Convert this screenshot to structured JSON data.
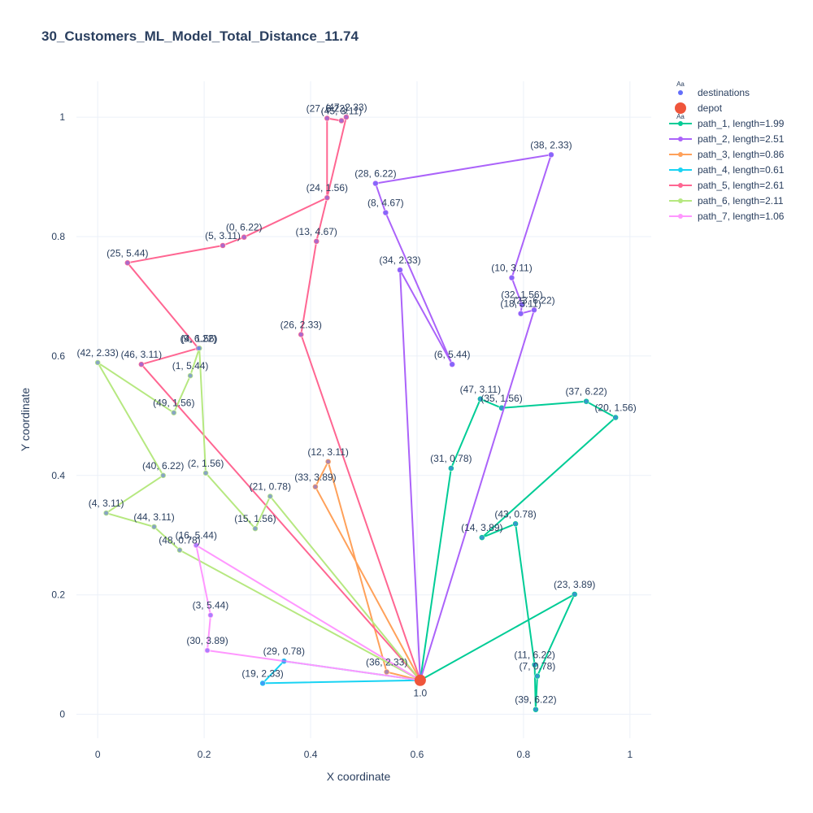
{
  "chart_data": {
    "type": "scatter",
    "title": "30_Customers_ML_Model_Total_Distance_11.74",
    "xlabel": "X coordinate",
    "ylabel": "Y coordinate",
    "xlim": [
      -0.04,
      1.04
    ],
    "ylim": [
      -0.04,
      1.06
    ],
    "x_ticks": [
      "0",
      "0.2",
      "0.4",
      "0.6",
      "0.8",
      "1"
    ],
    "y_ticks": [
      "0",
      "0.2",
      "0.4",
      "0.6",
      "0.8",
      "1"
    ],
    "grid": true,
    "legend_position": "top-right",
    "depot": {
      "name": "depot",
      "label": "1.0",
      "x": 0.606,
      "y": 0.057,
      "color": "#ef553b"
    },
    "destinations": {
      "name": "destinations",
      "color": "#636efa",
      "points": [
        {
          "label": "(31, 0.78)",
          "x": 0.664,
          "y": 0.412
        },
        {
          "label": "(47, 3.11)",
          "x": 0.719,
          "y": 0.528
        },
        {
          "label": "(35, 1.56)",
          "x": 0.759,
          "y": 0.513
        },
        {
          "label": "(37, 6.22)",
          "x": 0.918,
          "y": 0.524
        },
        {
          "label": "(20, 1.56)",
          "x": 0.973,
          "y": 0.497
        },
        {
          "label": "(14, 3.89)",
          "x": 0.722,
          "y": 0.296
        },
        {
          "label": "(43, 0.78)",
          "x": 0.785,
          "y": 0.319
        },
        {
          "label": "(11, 6.22)",
          "x": 0.821,
          "y": 0.083
        },
        {
          "label": "(39, 6.22)",
          "x": 0.823,
          "y": 0.008
        },
        {
          "label": "(7, 0.78)",
          "x": 0.826,
          "y": 0.064
        },
        {
          "label": "(23, 3.89)",
          "x": 0.896,
          "y": 0.201
        },
        {
          "label": "(34, 2.33)",
          "x": 0.568,
          "y": 0.744
        },
        {
          "label": "(6, 5.44)",
          "x": 0.666,
          "y": 0.586
        },
        {
          "label": "(8, 4.67)",
          "x": 0.541,
          "y": 0.84
        },
        {
          "label": "(28, 6.22)",
          "x": 0.522,
          "y": 0.889
        },
        {
          "label": "(38, 2.33)",
          "x": 0.852,
          "y": 0.937
        },
        {
          "label": "(10, 3.11)",
          "x": 0.778,
          "y": 0.731
        },
        {
          "label": "(32, 1.56)",
          "x": 0.797,
          "y": 0.686
        },
        {
          "label": "(18, 3.11)",
          "x": 0.795,
          "y": 0.671
        },
        {
          "label": "(23, 6.22)",
          "x": 0.82,
          "y": 0.677
        },
        {
          "label": "(33, 3.89)",
          "x": 0.409,
          "y": 0.381
        },
        {
          "label": "(12, 3.11)",
          "x": 0.433,
          "y": 0.423
        },
        {
          "label": "(36, 2.33)",
          "x": 0.543,
          "y": 0.071
        },
        {
          "label": "(29, 0.78)",
          "x": 0.35,
          "y": 0.089
        },
        {
          "label": "(19, 2.33)",
          "x": 0.31,
          "y": 0.052
        },
        {
          "label": "(26, 2.33)",
          "x": 0.382,
          "y": 0.636
        },
        {
          "label": "(13, 4.67)",
          "x": 0.411,
          "y": 0.792
        },
        {
          "label": "(24, 1.56)",
          "x": 0.431,
          "y": 0.865
        },
        {
          "label": "(27, 6.22)",
          "x": 0.431,
          "y": 0.998
        },
        {
          "label": "(45, 3.11)",
          "x": 0.458,
          "y": 0.994
        },
        {
          "label": "(47, 2.33)",
          "x": 0.467,
          "y": 1.0
        },
        {
          "label": "(0, 6.22)",
          "x": 0.275,
          "y": 0.799
        },
        {
          "label": "(5, 3.11)",
          "x": 0.235,
          "y": 0.785
        },
        {
          "label": "(25, 5.44)",
          "x": 0.056,
          "y": 0.756
        },
        {
          "label": "(9, 6.22)",
          "x": 0.189,
          "y": 0.613
        },
        {
          "label": "(46, 3.11)",
          "x": 0.082,
          "y": 0.586
        },
        {
          "label": "(1, 5.44)",
          "x": 0.174,
          "y": 0.567
        },
        {
          "label": "(49, 1.56)",
          "x": 0.143,
          "y": 0.505
        },
        {
          "label": "(42, 2.33)",
          "x": 0.0,
          "y": 0.589
        },
        {
          "label": "(4, 1.56)",
          "x": 0.191,
          "y": 0.613
        },
        {
          "label": "(2, 1.56)",
          "x": 0.203,
          "y": 0.404
        },
        {
          "label": "(15, 1.56)",
          "x": 0.296,
          "y": 0.311
        },
        {
          "label": "(21, 0.78)",
          "x": 0.324,
          "y": 0.365
        },
        {
          "label": "(40, 6.22)",
          "x": 0.123,
          "y": 0.4
        },
        {
          "label": "(4, 3.11)",
          "x": 0.016,
          "y": 0.337
        },
        {
          "label": "(44, 3.11)",
          "x": 0.106,
          "y": 0.314
        },
        {
          "label": "(48, 0.78)",
          "x": 0.154,
          "y": 0.275
        },
        {
          "label": "(16, 5.44)",
          "x": 0.185,
          "y": 0.283
        },
        {
          "label": "(3, 5.44)",
          "x": 0.212,
          "y": 0.166
        },
        {
          "label": "(30, 3.89)",
          "x": 0.206,
          "y": 0.107
        }
      ]
    },
    "series": [
      {
        "name": "path_1, length=1.99",
        "color": "#00cc96",
        "points": [
          [
            0.606,
            0.057
          ],
          [
            0.664,
            0.412
          ],
          [
            0.719,
            0.528
          ],
          [
            0.759,
            0.513
          ],
          [
            0.918,
            0.524
          ],
          [
            0.973,
            0.497
          ],
          [
            0.722,
            0.296
          ],
          [
            0.785,
            0.319
          ],
          [
            0.821,
            0.083
          ],
          [
            0.823,
            0.008
          ],
          [
            0.826,
            0.064
          ],
          [
            0.896,
            0.201
          ],
          [
            0.606,
            0.057
          ]
        ]
      },
      {
        "name": "path_2, length=2.51",
        "color": "#ab63fa",
        "points": [
          [
            0.606,
            0.057
          ],
          [
            0.568,
            0.744
          ],
          [
            0.666,
            0.586
          ],
          [
            0.541,
            0.84
          ],
          [
            0.522,
            0.889
          ],
          [
            0.852,
            0.937
          ],
          [
            0.778,
            0.731
          ],
          [
            0.797,
            0.686
          ],
          [
            0.795,
            0.671
          ],
          [
            0.82,
            0.677
          ],
          [
            0.606,
            0.057
          ]
        ]
      },
      {
        "name": "path_3, length=0.86",
        "color": "#ffa15a",
        "points": [
          [
            0.606,
            0.057
          ],
          [
            0.409,
            0.381
          ],
          [
            0.433,
            0.423
          ],
          [
            0.543,
            0.071
          ],
          [
            0.606,
            0.057
          ]
        ]
      },
      {
        "name": "path_4, length=0.61",
        "color": "#19d3f3",
        "points": [
          [
            0.606,
            0.057
          ],
          [
            0.35,
            0.089
          ],
          [
            0.31,
            0.052
          ],
          [
            0.606,
            0.057
          ]
        ]
      },
      {
        "name": "path_5, length=2.61",
        "color": "#ff6692",
        "points": [
          [
            0.606,
            0.057
          ],
          [
            0.382,
            0.636
          ],
          [
            0.411,
            0.792
          ],
          [
            0.431,
            0.865
          ],
          [
            0.431,
            0.998
          ],
          [
            0.458,
            0.994
          ],
          [
            0.467,
            1.0
          ],
          [
            0.431,
            0.865
          ],
          [
            0.275,
            0.799
          ],
          [
            0.235,
            0.785
          ],
          [
            0.056,
            0.756
          ],
          [
            0.189,
            0.613
          ],
          [
            0.082,
            0.586
          ],
          [
            0.606,
            0.057
          ]
        ]
      },
      {
        "name": "path_6, length=2.11",
        "color": "#b6e880",
        "points": [
          [
            0.606,
            0.057
          ],
          [
            0.324,
            0.365
          ],
          [
            0.296,
            0.311
          ],
          [
            0.203,
            0.404
          ],
          [
            0.191,
            0.613
          ],
          [
            0.174,
            0.567
          ],
          [
            0.143,
            0.505
          ],
          [
            0.0,
            0.589
          ],
          [
            0.123,
            0.4
          ],
          [
            0.016,
            0.337
          ],
          [
            0.106,
            0.314
          ],
          [
            0.154,
            0.275
          ],
          [
            0.606,
            0.057
          ]
        ]
      },
      {
        "name": "path_7, length=1.06",
        "color": "#ff97ff",
        "points": [
          [
            0.606,
            0.057
          ],
          [
            0.185,
            0.283
          ],
          [
            0.212,
            0.166
          ],
          [
            0.206,
            0.107
          ],
          [
            0.606,
            0.057
          ]
        ]
      }
    ]
  }
}
